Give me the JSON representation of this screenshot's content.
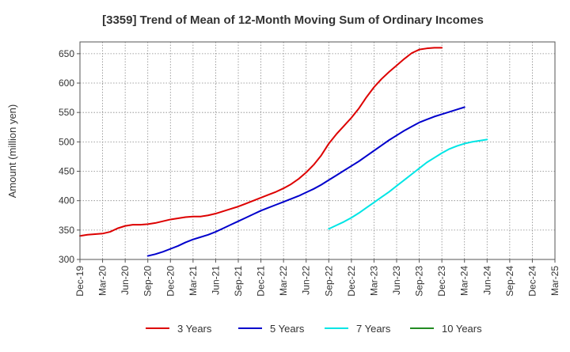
{
  "chart_data": {
    "type": "line",
    "title": "[3359]  Trend of Mean of 12-Month Moving Sum of Ordinary Incomes",
    "xlabel": "",
    "ylabel": "Amount (million yen)",
    "ylim": [
      300,
      670
    ],
    "y_ticks": [
      300,
      350,
      400,
      450,
      500,
      550,
      600,
      650
    ],
    "x_ticks": [
      "Dec-19",
      "Mar-20",
      "Jun-20",
      "Sep-20",
      "Dec-20",
      "Mar-21",
      "Jun-21",
      "Sep-21",
      "Dec-21",
      "Mar-22",
      "Jun-22",
      "Sep-22",
      "Dec-22",
      "Mar-23",
      "Jun-23",
      "Sep-23",
      "Dec-23",
      "Mar-24",
      "Jun-24",
      "Sep-24",
      "Dec-24",
      "Mar-25"
    ],
    "grid": true,
    "legend_position": "bottom",
    "series": [
      {
        "name": "3 Years",
        "color": "#dd0000",
        "start_index": 0,
        "values": [
          340,
          342,
          343,
          344,
          347,
          353,
          357,
          359,
          359,
          360,
          362,
          365,
          368,
          370,
          372,
          373,
          373,
          375,
          378,
          382,
          386,
          390,
          395,
          400,
          405,
          410,
          415,
          421,
          428,
          437,
          448,
          461,
          477,
          497,
          513,
          527,
          541,
          557,
          576,
          593,
          607,
          619,
          630,
          641,
          651,
          657,
          659,
          660,
          660
        ]
      },
      {
        "name": "5 Years",
        "color": "#0000cc",
        "start_index": 9,
        "values": [
          306,
          309,
          313,
          318,
          323,
          329,
          334,
          338,
          342,
          347,
          353,
          359,
          365,
          371,
          377,
          383,
          388,
          393,
          398,
          403,
          408,
          414,
          420,
          427,
          435,
          443,
          451,
          459,
          467,
          476,
          485,
          494,
          503,
          511,
          519,
          526,
          533,
          538,
          543,
          547,
          551,
          555,
          559
        ]
      },
      {
        "name": "7 Years",
        "color": "#00e5e5",
        "start_index": 33,
        "values": [
          352,
          358,
          364,
          371,
          379,
          388,
          397,
          406,
          415,
          425,
          435,
          445,
          455,
          465,
          473,
          481,
          488,
          493,
          497,
          500,
          502,
          504
        ]
      },
      {
        "name": "10 Years",
        "color": "#228b22",
        "start_index": 0,
        "values": []
      }
    ]
  }
}
